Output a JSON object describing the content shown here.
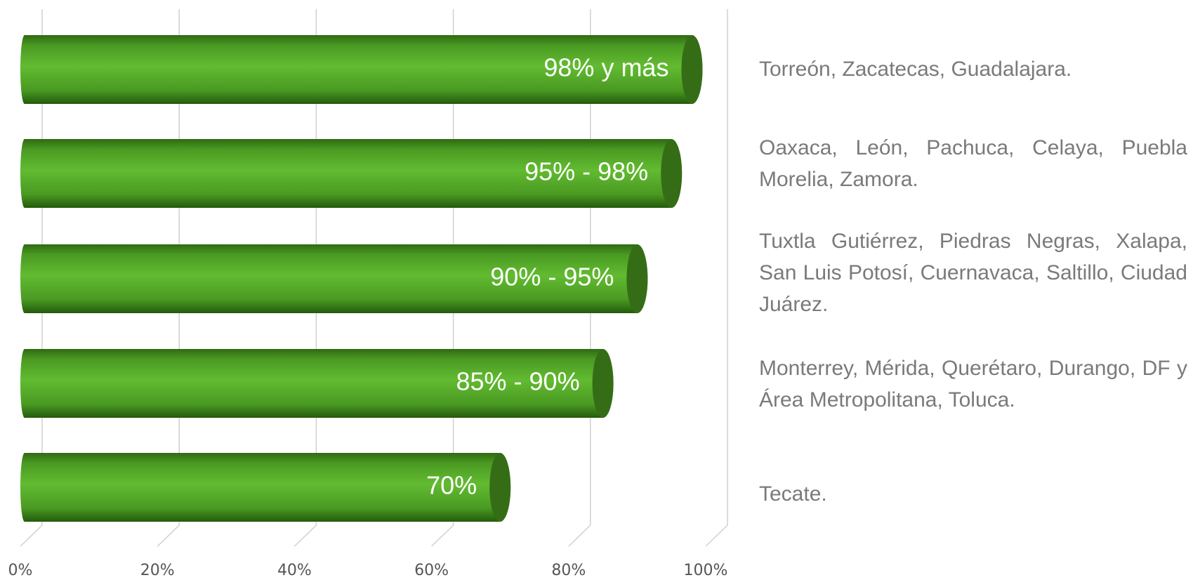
{
  "chart_data": {
    "type": "bar",
    "orientation": "horizontal",
    "categories": [
      "Torreón, Zacatecas, Guadalajara.",
      "Oaxaca, León, Pachuca, Celaya, Puebla Morelia, Zamora.",
      "Tuxtla Gutiérrez, Piedras Negras, Xalapa, San Luis Potosí, Cuernavaca, Saltillo, Ciudad Juárez.",
      "Monterrey, Mérida, Querétaro, Durango, DF y Área Metropolitana, Toluca.",
      "Tecate."
    ],
    "values": [
      98,
      95,
      90,
      85,
      70
    ],
    "value_labels": [
      "98% y más",
      "95% - 98%",
      "90% - 95%",
      "85% - 90%",
      "70%"
    ],
    "color": "#5cb82c",
    "xlim": [
      0,
      100
    ],
    "xticks": [
      {
        "value": 0,
        "label": "0%"
      },
      {
        "value": 20,
        "label": "20%"
      },
      {
        "value": 40,
        "label": "40%"
      },
      {
        "value": 60,
        "label": "60%"
      },
      {
        "value": 80,
        "label": "80%"
      },
      {
        "value": 100,
        "label": "100%"
      }
    ],
    "grid": true
  }
}
